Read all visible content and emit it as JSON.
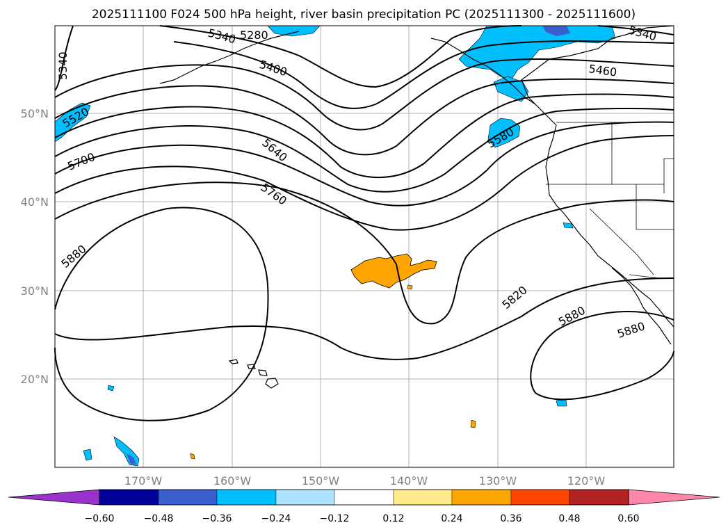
{
  "title": "2025111100 F024 500 hPa height, river basin precipitation PC (2025111300 - 2025111600)",
  "map": {
    "lon_ticks": [
      "170°W",
      "160°W",
      "150°W",
      "140°W",
      "130°W",
      "120°W"
    ],
    "lat_ticks": [
      "50°N",
      "40°N",
      "30°N",
      "20°N"
    ]
  },
  "contour_labels": [
    "5340",
    "5280",
    "5340",
    "5400",
    "5460",
    "5340",
    "5520",
    "5580",
    "5640",
    "5700",
    "5760",
    "5880",
    "5820",
    "5880",
    "5880"
  ],
  "colorbar": {
    "ticks": [
      "−0.60",
      "−0.48",
      "−0.36",
      "−0.24",
      "−0.12",
      "0.12",
      "0.24",
      "0.36",
      "0.48",
      "0.60"
    ],
    "under_color": "#9933cc",
    "colors": [
      "#000099",
      "#3a5fcd",
      "#00bfff",
      "#aee3ff",
      "#ffffff",
      "#ffeb8c",
      "#ffa500",
      "#ff4500",
      "#b22222",
      "#ff88aa"
    ],
    "over_color": "#ff88aa"
  },
  "fill_colors": {
    "neg_light": "#00bfff",
    "neg_mid": "#3a5fcd",
    "pos": "#ffa500"
  }
}
